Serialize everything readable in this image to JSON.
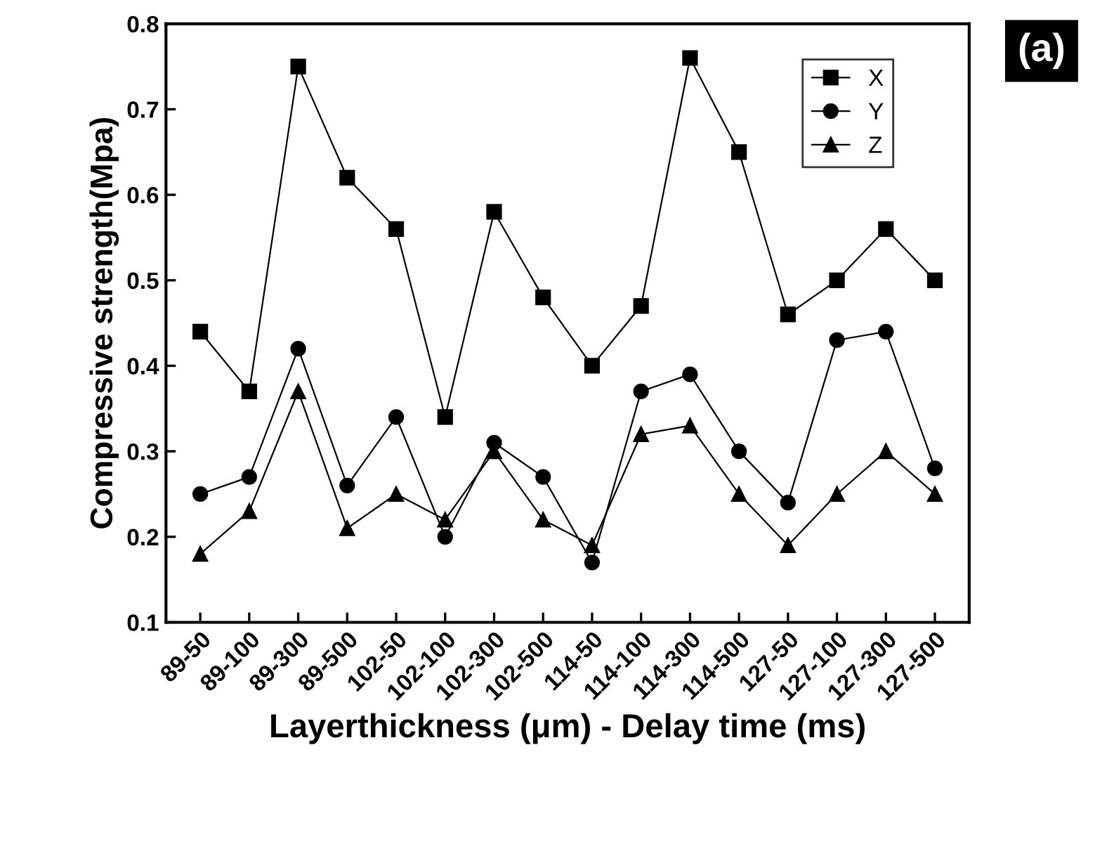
{
  "chart_data": {
    "type": "line",
    "xlabel": "Layerthickness (μm) - Delay time (ms)",
    "ylabel": "Compressive strength(Mpa)",
    "categories": [
      "89-50",
      "89-100",
      "89-300",
      "89-500",
      "102-50",
      "102-100",
      "102-300",
      "102-500",
      "114-50",
      "114-100",
      "114-300",
      "114-500",
      "127-50",
      "127-100",
      "127-300",
      "127-500"
    ],
    "series": [
      {
        "name": "X",
        "color": "#000000",
        "marker": "square",
        "values": [
          0.44,
          0.37,
          0.75,
          0.62,
          0.56,
          0.34,
          0.58,
          0.48,
          0.4,
          0.47,
          0.76,
          0.65,
          0.46,
          0.5,
          0.56,
          0.5
        ]
      },
      {
        "name": "Y",
        "color": "#000000",
        "marker": "circle",
        "values": [
          0.25,
          0.27,
          0.42,
          0.26,
          0.34,
          0.2,
          0.31,
          0.27,
          0.17,
          0.37,
          0.39,
          0.3,
          0.24,
          0.43,
          0.44,
          0.28
        ]
      },
      {
        "name": "Z",
        "color": "#000000",
        "marker": "triangle",
        "values": [
          0.18,
          0.23,
          0.37,
          0.21,
          0.25,
          0.22,
          0.3,
          0.22,
          0.19,
          0.32,
          0.33,
          0.25,
          0.19,
          0.25,
          0.3,
          0.25
        ]
      }
    ],
    "ylim": [
      0.1,
      0.8
    ],
    "yticks": [
      0.1,
      0.2,
      0.3,
      0.4,
      0.5,
      0.6,
      0.7,
      0.8
    ],
    "grid": false,
    "legend": "top right",
    "line_style": "solid",
    "annotations": [
      "(a)"
    ]
  }
}
